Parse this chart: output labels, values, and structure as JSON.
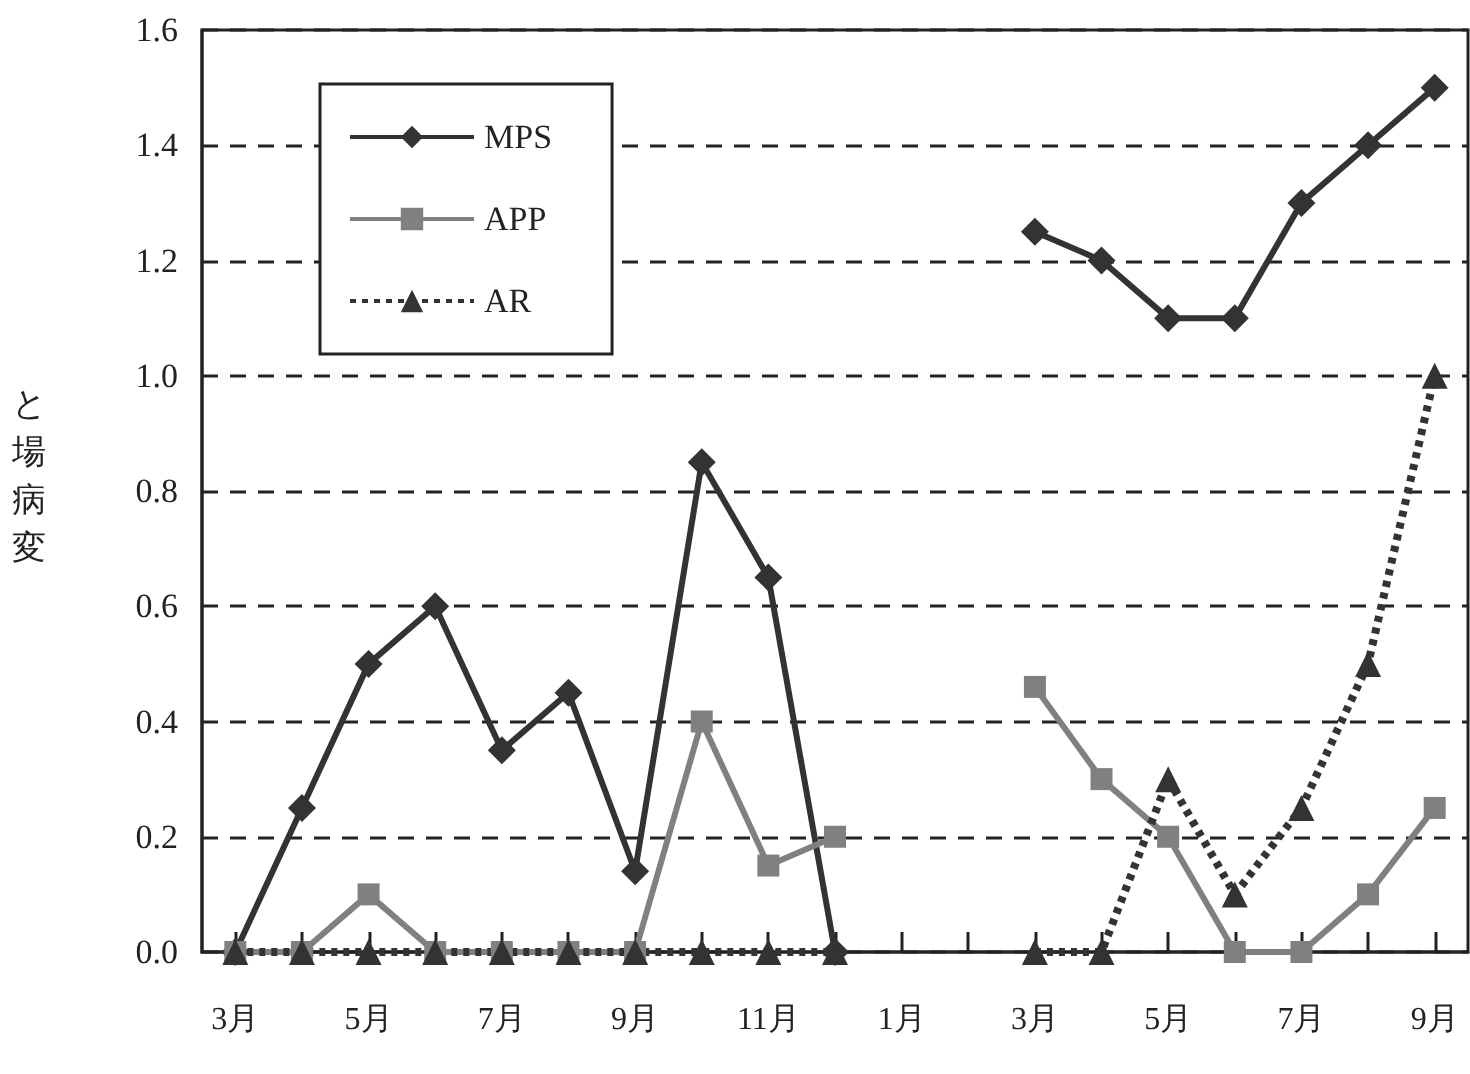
{
  "chart_data": {
    "type": "line",
    "ylabel": "と場病変",
    "categories": [
      "3月",
      null,
      "5月",
      null,
      "7月",
      null,
      "9月",
      null,
      "11月",
      null,
      "1月",
      null,
      "3月",
      null,
      "5月",
      null,
      "7月",
      null,
      "9月"
    ],
    "series": [
      {
        "name": "MPS",
        "color": "#333333",
        "marker": "diamond",
        "line_style": "solid",
        "values": [
          0,
          0.25,
          0.5,
          0.6,
          0.35,
          0.45,
          0.14,
          0.85,
          0.65,
          0,
          null,
          null,
          1.25,
          1.2,
          1.1,
          1.1,
          1.3,
          1.4,
          1.5
        ]
      },
      {
        "name": "APP",
        "color": "#808080",
        "marker": "square",
        "line_style": "solid",
        "values": [
          0,
          0,
          0.1,
          0,
          0,
          0,
          0,
          0.4,
          0.15,
          0.2,
          null,
          null,
          0.46,
          0.3,
          0.2,
          0,
          0,
          0.1,
          0.25
        ]
      },
      {
        "name": "AR",
        "color": "#333333",
        "marker": "triangle",
        "line_style": "dotted",
        "values": [
          0,
          0,
          0,
          0,
          0,
          0,
          0,
          0,
          0,
          0,
          null,
          null,
          0,
          0,
          0.3,
          0.1,
          0.25,
          0.5,
          1.0
        ]
      }
    ],
    "ylim": [
      0,
      1.6
    ],
    "yticks": [
      {
        "value": 0,
        "label": "0.0"
      },
      {
        "value": 0.2,
        "label": "0.2"
      },
      {
        "value": 0.4,
        "label": "0.4"
      },
      {
        "value": 0.6,
        "label": "0.6"
      },
      {
        "value": 0.8,
        "label": "0.8"
      },
      {
        "value": 1.0,
        "label": "1.0"
      },
      {
        "value": 1.2,
        "label": "1.2"
      },
      {
        "value": 1.4,
        "label": "1.4"
      },
      {
        "value": 1.6,
        "label": "1.6"
      }
    ],
    "grid": "y",
    "legend": "top left"
  }
}
